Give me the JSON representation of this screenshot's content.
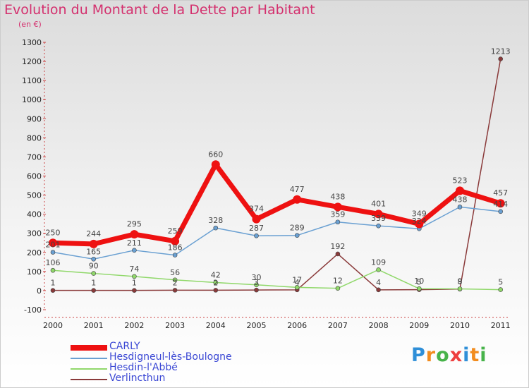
{
  "title": "Evolution du Montant de la Dette par Habitant",
  "subtitle": "(en €)",
  "logo": {
    "text": "Proxiti",
    "colors": [
      "#2f8fd8",
      "#f28c1e",
      "#47b34a",
      "#ee3f3f",
      "#2f8fd8",
      "#f28c1e",
      "#47b34a"
    ]
  },
  "chart_data": {
    "type": "line",
    "x": [
      "2000",
      "2001",
      "2002",
      "2003",
      "2004",
      "2005",
      "2006",
      "2007",
      "2008",
      "2009",
      "2010",
      "2011"
    ],
    "ylim": [
      -100,
      1300
    ],
    "yticks": [
      -100,
      0,
      100,
      200,
      300,
      400,
      500,
      600,
      700,
      800,
      900,
      1000,
      1100,
      1200,
      1300
    ],
    "grid": false,
    "legend": "bottom-left",
    "series": [
      {
        "name": "CARLY",
        "color": "#ee1111",
        "width": 7,
        "marker": 6,
        "values": [
          250,
          244,
          295,
          259,
          660,
          374,
          477,
          438,
          401,
          349,
          523,
          457
        ],
        "labels": [
          "250",
          "244",
          "295",
          "259",
          "660",
          "374",
          "477",
          "438",
          "401",
          "349",
          "523",
          "457"
        ]
      },
      {
        "name": "Hesdigneul-lès-Boulogne",
        "color": "#6aa0d2",
        "width": 1.5,
        "marker": 3,
        "values": [
          201,
          165,
          211,
          186,
          328,
          287,
          289,
          359,
          339,
          324,
          438,
          414
        ],
        "labels": [
          "201",
          "165",
          "211",
          "186",
          "328",
          "287",
          "289",
          "359",
          "339",
          "324",
          "438",
          "414"
        ]
      },
      {
        "name": "Hesdin-l'Abbé",
        "color": "#90d86a",
        "width": 1.5,
        "marker": 3,
        "values": [
          106,
          90,
          74,
          56,
          42,
          30,
          17,
          12,
          109,
          10,
          9,
          5
        ],
        "labels": [
          "106",
          "90",
          "74",
          "56",
          "42",
          "30",
          "17",
          "12",
          "109",
          "10",
          "9",
          "5"
        ]
      },
      {
        "name": "Verlincthun",
        "color": "#8a3a3a",
        "width": 1.5,
        "marker": 3,
        "values": [
          1,
          1,
          1,
          2,
          2,
          3,
          4,
          192,
          4,
          5,
          8,
          1213
        ],
        "labels": [
          "1",
          "1",
          "1",
          "2",
          "2",
          "3",
          "4",
          "192",
          "4",
          "5",
          "8",
          "1213"
        ]
      }
    ]
  }
}
